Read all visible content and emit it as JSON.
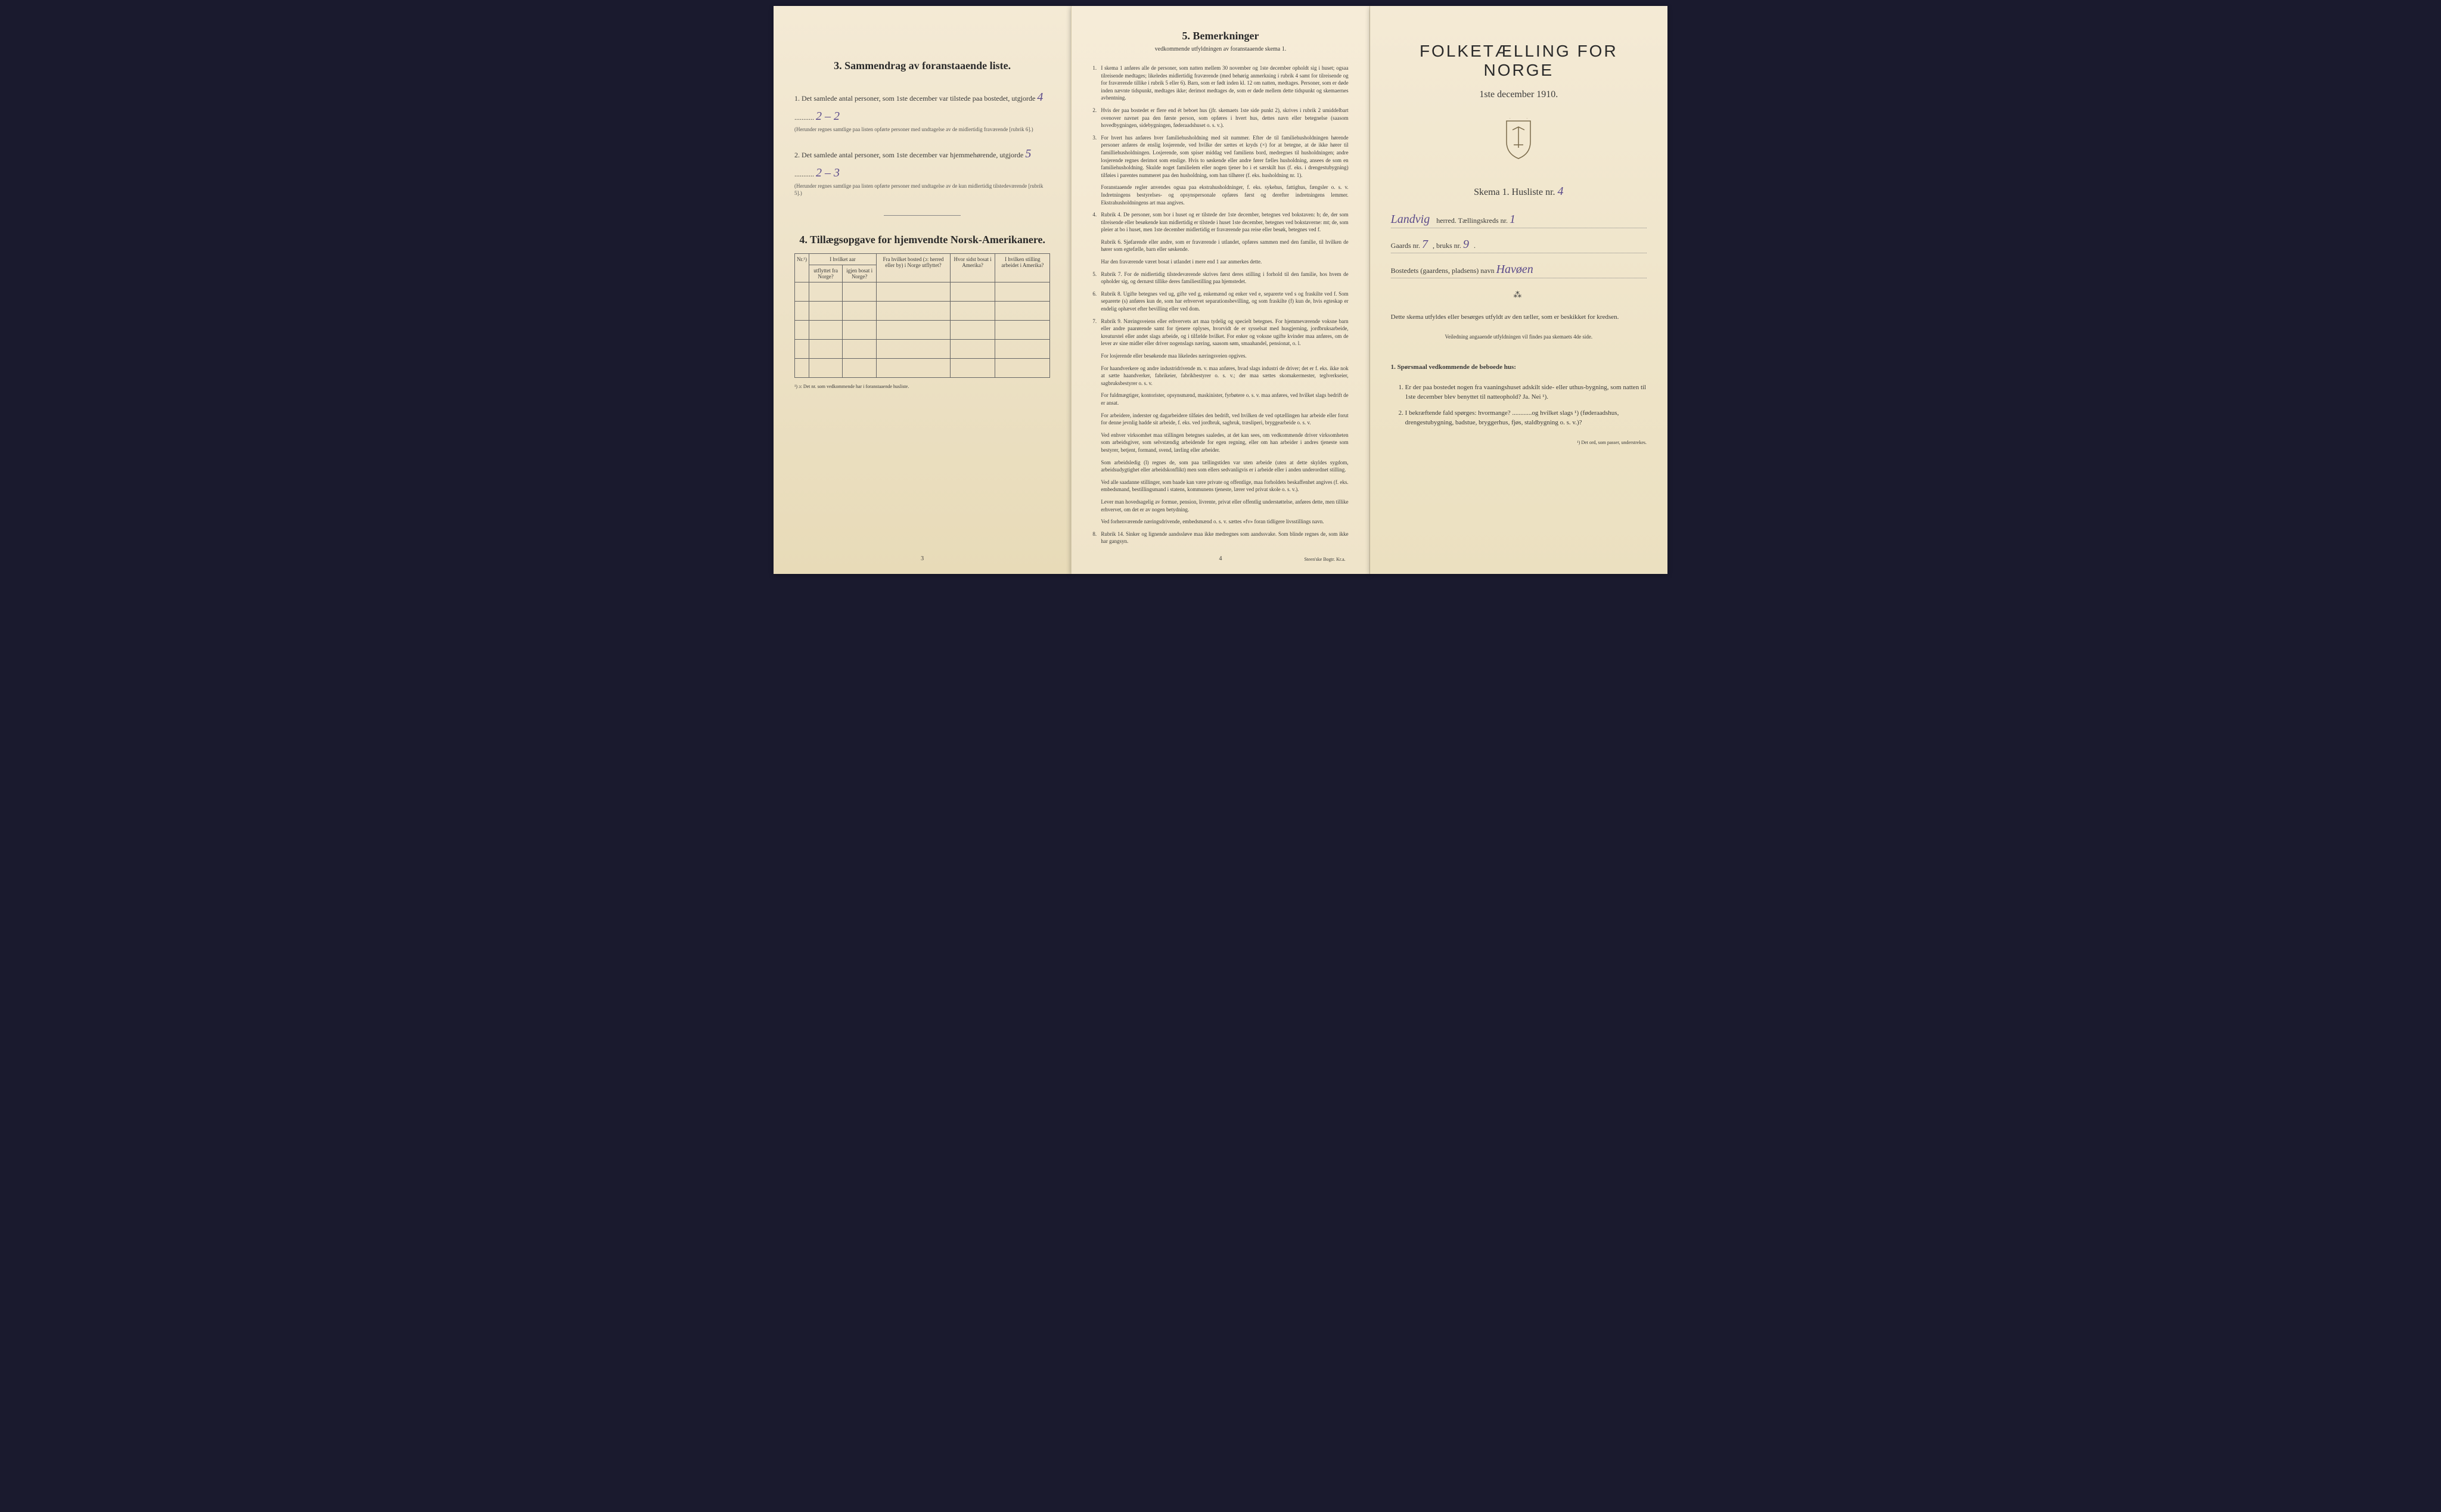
{
  "page1": {
    "section3_title": "3.  Sammendrag av foranstaaende liste.",
    "item1_text": "1. Det samlede antal personer, som 1ste december var tilstede paa bostedet, utgjorde",
    "item1_value": "4",
    "item1_breakdown": "2 – 2",
    "item1_helper": "(Herunder regnes samtlige paa listen opførte personer med undtagelse av de midlertidig fraværende [rubrik 6].)",
    "item2_text": "2. Det samlede antal personer, som 1ste december var hjemmehørende, utgjorde",
    "item2_value": "5",
    "item2_breakdown": "2 – 3",
    "item2_helper": "(Herunder regnes samtlige paa listen opførte personer med undtagelse av de kun midlertidig tilstedeværende [rubrik 5].)",
    "section4_title": "4.  Tillægsopgave for hjemvendte Norsk-Amerikanere.",
    "table_headers": {
      "nr": "Nr.¹)",
      "col1a": "I hvilket aar",
      "col1b": "utflyttet fra Norge?",
      "col2": "igjen bosat i Norge?",
      "col3": "Fra hvilket bosted (ɔ: herred eller by) i Norge utflyttet?",
      "col4": "Hvor sidst bosat i Amerika?",
      "col5": "I hvilken stilling arbeidet i Amerika?"
    },
    "footnote": "¹) ɔ: Det nr. som vedkommende har i foranstaaende husliste.",
    "page_num": "3"
  },
  "page2": {
    "title": "5.  Bemerkninger",
    "subtitle": "vedkommende utfyldningen av foranstaaende skema 1.",
    "remarks": [
      {
        "n": "1.",
        "text": "I skema 1 anføres alle de personer, som natten mellem 30 november og 1ste december opholdt sig i huset; ogsaa tilreisende medtages; likeledes midlertidig fraværende (med behørig anmerkning i rubrik 4 samt for tilreisende og for fraværende tillike i rubrik 5 eller 6). Barn, som er født inden kl. 12 om natten, medtages. Personer, som er døde inden nævnte tidspunkt, medtages ikke; derimot medtages de, som er døde mellem dette tidspunkt og skemaernes avhentning."
      },
      {
        "n": "2.",
        "text": "Hvis der paa bostedet er flere end ét beboet hus (jfr. skemaets 1ste side punkt 2), skrives i rubrik 2 umiddelbart ovenover navnet paa den første person, som opføres i hvert hus, dettes navn eller betegnelse (saasom hovedbygningen, sidebygningen, føderaadshuset o. s. v.)."
      },
      {
        "n": "3.",
        "text": "For hvert hus anføres hver familiehusholdning med sit nummer. Efter de til familiehusholdningen hørende personer anføres de enslig losjerende, ved hvilke der sættes et kryds (×) for at betegne, at de ikke hører til familliehusholdningen. Losjerende, som spiser middag ved familiens bord, medregnes til husholdningen; andre losjerende regnes derimot som enslige. Hvis to søskende eller andre fører fælles husholdning, ansees de som en familiehusholdning. Skulde noget familielem eller nogen tjener bo i et særskilt hus (f. eks. i drengestubygning) tilføies i parentes nummeret paa den husholdning, som han tilhører (f. eks. husholdning nr. 1)."
      },
      {
        "n": "",
        "text": "Foranstaaende regler anvendes ogsaa paa ekstrahusholdninger, f. eks. sykehus, fattighus, fængsler o. s. v. Indretningens bestyrelses- og opsynspersonale opføres først og derefter indretningens lemmer. Ekstrahusholdningens art maa angives."
      },
      {
        "n": "4.",
        "text": "Rubrik 4. De personer, som bor i huset og er tilstede der 1ste december, betegnes ved bokstaven: b; de, der som tilreisende eller besøkende kun midlertidig er tilstede i huset 1ste december, betegnes ved bokstaverne: mt; de, som pleier at bo i huset, men 1ste december midlertidig er fraværende paa reise eller besøk, betegnes ved f."
      },
      {
        "n": "",
        "text": "Rubrik 6. Sjøfarende eller andre, som er fraværende i utlandet, opføres sammen med den familie, til hvilken de hører som egtefælle, barn eller søskende."
      },
      {
        "n": "",
        "text": "Har den fraværende været bosat i utlandet i mere end 1 aar anmerkes dette."
      },
      {
        "n": "5.",
        "text": "Rubrik 7. For de midlertidig tilstedeværende skrives først deres stilling i forhold til den familie, hos hvem de opholder sig, og dernæst tillike deres familiestilling paa hjemstedet."
      },
      {
        "n": "6.",
        "text": "Rubrik 8. Ugifte betegnes ved ug, gifte ved g, enkemænd og enker ved e, separerte ved s og fraskilte ved f. Som separerte (s) anføres kun de, som har erhvervet separationsbevilling, og som fraskilte (f) kun de, hvis egteskap er endelig ophævet efter bevilling eller ved dom."
      },
      {
        "n": "7.",
        "text": "Rubrik 9. Næringsveiens eller erhvervets art maa tydelig og specielt betegnes. For hjemmeværende voksne barn eller andre paarørende samt for tjenere oplyses, hvorvidt de er sysselsat med husgjerning, jordbruksarbeide, kreaturstel eller andet slags arbeide, og i tilfælde hvilket. For enker og voksne ugifte kvinder maa anføres, om de lever av sine midler eller driver nogenslags næring, saasom søm, smaahandel, pensionat, o. l."
      },
      {
        "n": "",
        "text": "For losjerende eller besøkende maa likeledes næringsveien opgives."
      },
      {
        "n": "",
        "text": "For haandverkere og andre industridrivende m. v. maa anføres, hvad slags industri de driver; det er f. eks. ikke nok at sætte haandverker, fabrikeier, fabrikbestyrer o. s. v.; der maa sættes skomakermester, teglverkseier, sagbruksbestyrer o. s. v."
      },
      {
        "n": "",
        "text": "For fuldmægtiger, kontorister, opsynsmænd, maskinister, fyrbøtere o. s. v. maa anføres, ved hvilket slags bedrift de er ansat."
      },
      {
        "n": "",
        "text": "For arbeidere, inderster og dagarbeidere tilføies den bedrift, ved hvilken de ved optællingen har arbeide eller forut for denne jevnlig hadde sit arbeide, f. eks. ved jordbruk, sagbruk, træsliperi, bryggearbeide o. s. v."
      },
      {
        "n": "",
        "text": "Ved enhver virksomhet maa stillingen betegnes saaledes, at det kan sees, om vedkommende driver virksomheten som arbeidsgiver, som selvstændig arbeidende for egen regning, eller om han arbeider i andres tjeneste som bestyrer, betjent, formand, svend, lærling eller arbeider."
      },
      {
        "n": "",
        "text": "Som arbeidsledig (l) regnes de, som paa tællingstiden var uten arbeide (uten at dette skyldes sygdom, arbeidsudygtighet eller arbeidskonflikt) men som ellers sedvanligvis er i arbeide eller i anden underordnet stilling."
      },
      {
        "n": "",
        "text": "Ved alle saadanne stillinger, som baade kan være private og offentlige, maa forholdets beskaffenhet angives (f. eks. embedsmand, bestillingsmand i statens, kommunens tjeneste, lærer ved privat skole o. s. v.)."
      },
      {
        "n": "",
        "text": "Lever man hovedsagelig av formue, pension, livrente, privat eller offentlig understøttelse, anføres dette, men tillike erhvervet, om det er av nogen betydning."
      },
      {
        "n": "",
        "text": "Ved forhenværende næringsdrivende, embedsmænd o. s. v. sættes «fv» foran tidligere livsstillings navn."
      },
      {
        "n": "8.",
        "text": "Rubrik 14. Sinker og lignende aandssløve maa ikke medregnes som aandssvake. Som blinde regnes de, som ikke har gangsyn."
      }
    ],
    "page_num": "4",
    "printer": "Steen'ske Bogtr.  Kr.a."
  },
  "page3": {
    "main_title": "FOLKETÆLLING FOR NORGE",
    "date": "1ste december 1910.",
    "skema": "Skema 1.  Husliste nr.",
    "husliste_nr": "4",
    "herred_value": "Landvig",
    "herred_label": "herred.  Tællingskreds nr.",
    "kreds_nr": "1",
    "gaards_label": "Gaards nr.",
    "gaards_nr": "7",
    "bruks_label": "bruks nr.",
    "bruks_nr": "9",
    "bosted_label": "Bostedets (gaardens, pladsens) navn",
    "bosted_value": "Havøen",
    "instr1": "Dette skema utfyldes eller besørges utfyldt av den tæller, som er beskikket for kredsen.",
    "instr2": "Veiledning angaaende utfyldningen vil findes paa skemaets 4de side.",
    "sporsmaal_title": "1. Spørsmaal vedkommende de beboede hus:",
    "q1": "Er der paa bostedet nogen fra vaaningshuset adskilt side- eller uthus-bygning, som natten til 1ste december blev benyttet til natteophold?   Ja.   Nei ¹).",
    "q2": "I bekræftende fald spørges: hvormange? ............og hvilket slags ¹) (føderaadshus, drengestubygning, badstue, bryggerhus, fjøs, staldbygning o. s. v.)?",
    "footnote": "¹) Det ord, som passer, understrekes."
  }
}
